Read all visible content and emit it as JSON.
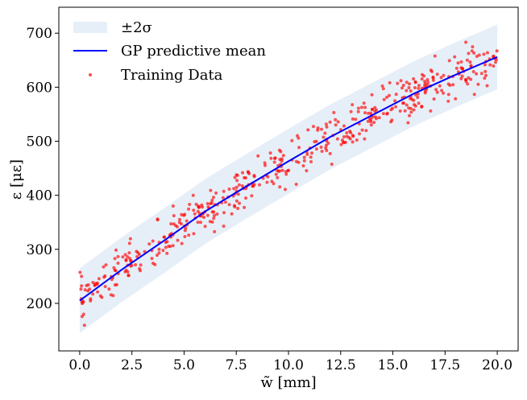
{
  "chart_data": {
    "type": "line",
    "title": "",
    "xlabel": "w̃ [mm]",
    "ylabel": "ε [με]",
    "xlim": [
      -1.0,
      21.0
    ],
    "ylim": [
      112,
      748
    ],
    "x_ticks": [
      0.0,
      2.5,
      5.0,
      7.5,
      10.0,
      12.5,
      15.0,
      17.5,
      20.0
    ],
    "x_tick_labels": [
      "0.0",
      "2.5",
      "5.0",
      "7.5",
      "10.0",
      "12.5",
      "15.0",
      "17.5",
      "20.0"
    ],
    "y_ticks": [
      200,
      300,
      400,
      500,
      600,
      700
    ],
    "y_tick_labels": [
      "200",
      "300",
      "400",
      "500",
      "600",
      "700"
    ],
    "grid": false,
    "legend_position": "top-left",
    "legend": {
      "band_label": "±2σ",
      "mean_label": "GP predictive mean",
      "data_label": "Training Data"
    },
    "colors": {
      "band": "#e6eff8",
      "mean": "#0000ff",
      "data": "#ff0000"
    },
    "series": [
      {
        "name": "GP predictive mean",
        "kind": "line",
        "x": [
          0,
          2,
          4,
          6,
          8,
          10,
          12,
          14,
          16,
          18,
          20
        ],
        "y": [
          205,
          262,
          315,
          370,
          417,
          463,
          508,
          548,
          588,
          623,
          656
        ]
      },
      {
        "name": "±2σ",
        "kind": "band",
        "x": [
          0,
          2,
          4,
          6,
          8,
          10,
          12,
          14,
          16,
          18,
          20
        ],
        "upper": [
          265,
          322,
          375,
          430,
          477,
          523,
          568,
          608,
          648,
          683,
          716
        ],
        "lower": [
          145,
          202,
          255,
          310,
          357,
          403,
          448,
          488,
          528,
          563,
          596
        ]
      },
      {
        "name": "Training Data",
        "kind": "scatter",
        "n_points": 500,
        "noise_std": 20,
        "x_range": [
          0,
          20
        ]
      }
    ]
  }
}
